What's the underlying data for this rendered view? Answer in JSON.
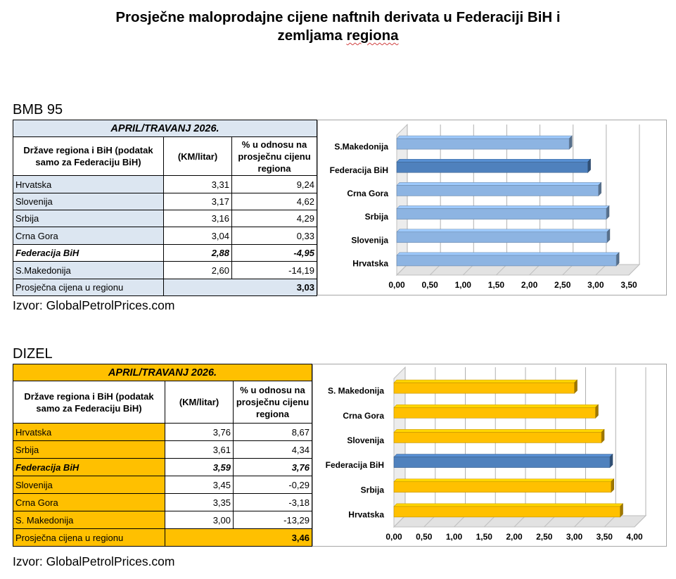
{
  "title": {
    "line1": "Prosječne maloprodajne cijene naftnih derivata u Federaciji BiH i",
    "line2_a": "zemljama ",
    "line2_b": "regiona"
  },
  "colors": {
    "bmb_band": "#dce6f1",
    "dizel_band": "#ffc000",
    "bar_light_blue": "#8db4e2",
    "bar_highlight_blue": "#4f81bd",
    "bar_gold": "#ffc000"
  },
  "sections": [
    {
      "id": "bmb",
      "label": "BMB 95",
      "period": "APRIL/TRAVANJ 2026.",
      "headers": {
        "country": "Države regiona i BiH (podatak samo za Federaciju BiH)",
        "price": "(KM/litar)",
        "pct": "% u odnosu na prosječnu cijenu regiona"
      },
      "rows": [
        {
          "country": "Hrvatska",
          "price": "3,31",
          "pct": "9,24",
          "highlight": false
        },
        {
          "country": "Slovenija",
          "price": "3,17",
          "pct": "4,62",
          "highlight": false
        },
        {
          "country": "Srbija",
          "price": "3,16",
          "pct": "4,29",
          "highlight": false
        },
        {
          "country": "Crna Gora",
          "price": "3,04",
          "pct": "0,33",
          "highlight": false
        },
        {
          "country": "Federacija BiH",
          "price": "2,88",
          "pct": "-4,95",
          "highlight": true
        },
        {
          "country": "S.Makedonija",
          "price": "2,60",
          "pct": "-14,19",
          "highlight": false
        }
      ],
      "average": {
        "label": "Prosječna cijena u regionu",
        "value": "3,03"
      },
      "source": "Izvor: GlobalPetrolPrices.com"
    },
    {
      "id": "dizel",
      "label": "DIZEL",
      "period": "APRIL/TRAVANJ 2026.",
      "headers": {
        "country": "Države regiona i BiH (podatak samo za Federaciju BiH)",
        "price": "(KM/litar)",
        "pct": "% u odnosu na prosječnu cijenu regiona"
      },
      "rows": [
        {
          "country": "Hrvatska",
          "price": "3,76",
          "pct": "8,67",
          "highlight": false
        },
        {
          "country": "Srbija",
          "price": "3,61",
          "pct": "4,34",
          "highlight": false
        },
        {
          "country": "Federacija BiH",
          "price": "3,59",
          "pct": "3,76",
          "highlight": true
        },
        {
          "country": "Slovenija",
          "price": "3,45",
          "pct": "-0,29",
          "highlight": false
        },
        {
          "country": "Crna Gora",
          "price": "3,35",
          "pct": "-3,18",
          "highlight": false
        },
        {
          "country": "S. Makedonija",
          "price": "3,00",
          "pct": "-13,29",
          "highlight": false
        }
      ],
      "average": {
        "label": "Prosječna cijena u regionu",
        "value": "3,46"
      },
      "source": "Izvor: GlobalPetrolPrices.com"
    }
  ],
  "chart_data": [
    {
      "type": "bar",
      "orientation": "horizontal",
      "categories": [
        "S.Makedonija",
        "Federacija BiH",
        "Crna Gora",
        "Srbija",
        "Slovenija",
        "Hrvatska"
      ],
      "values": [
        2.6,
        2.88,
        3.04,
        3.16,
        3.17,
        3.31
      ],
      "highlight": [
        "Federacija BiH"
      ],
      "xlim": [
        0,
        3.5
      ],
      "xticks": [
        "0,00",
        "0,50",
        "1,00",
        "1,50",
        "2,00",
        "2,50",
        "3,00",
        "3,50"
      ],
      "bar_color": "#8db4e2",
      "highlight_color": "#4f81bd",
      "grid": true,
      "legend": "none"
    },
    {
      "type": "bar",
      "orientation": "horizontal",
      "categories": [
        "S. Makedonija",
        "Crna Gora",
        "Slovenija",
        "Federacija BiH",
        "Srbija",
        "Hrvatska"
      ],
      "values": [
        3.0,
        3.35,
        3.45,
        3.59,
        3.61,
        3.76
      ],
      "highlight": [
        "Federacija BiH"
      ],
      "xlim": [
        0,
        4.0
      ],
      "xticks": [
        "0,00",
        "0,50",
        "1,00",
        "1,50",
        "2,00",
        "2,50",
        "3,00",
        "3,50",
        "4,00"
      ],
      "bar_color": "#ffc000",
      "highlight_color": "#4f81bd",
      "grid": true,
      "legend": "none"
    }
  ]
}
